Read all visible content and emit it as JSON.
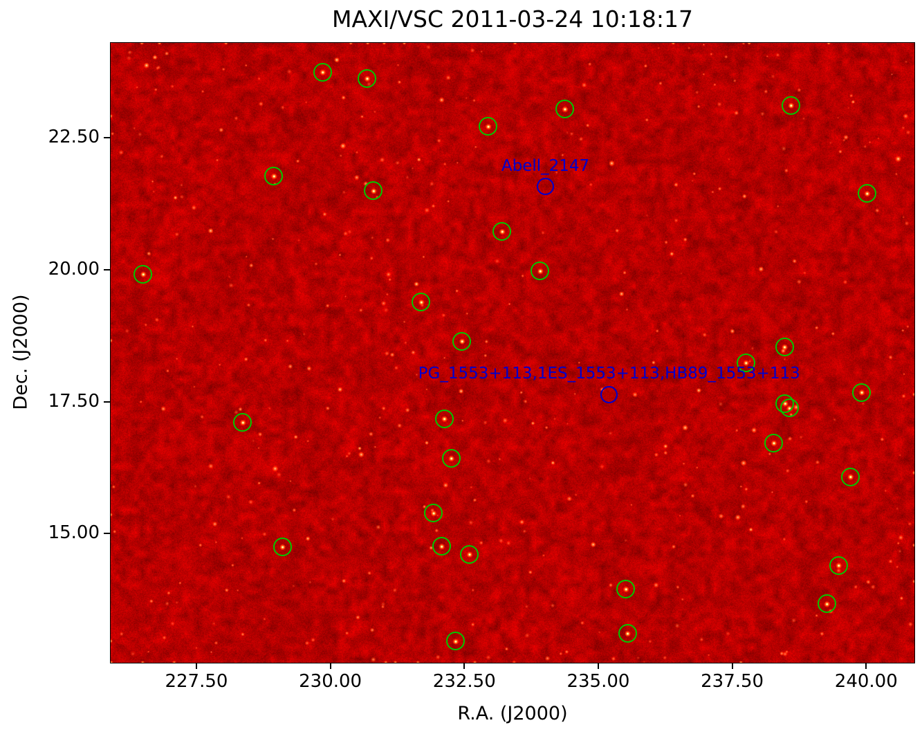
{
  "chart_data": {
    "type": "scatter",
    "title": "MAXI/VSC 2011-03-24 10:18:17",
    "xlabel": "R.A. (J2000)",
    "ylabel": "Dec. (J2000)",
    "xlim": [
      225.9,
      240.9
    ],
    "ylim": [
      12.55,
      24.3
    ],
    "x_ticks": [
      227.5,
      230.0,
      232.5,
      235.0,
      237.5,
      240.0
    ],
    "x_tick_labels": [
      "227.50",
      "230.00",
      "232.50",
      "235.00",
      "237.50",
      "240.00"
    ],
    "y_ticks": [
      22.5,
      20.0,
      17.5,
      15.0
    ],
    "y_tick_labels": [
      "22.50",
      "20.00",
      "17.50",
      "15.00"
    ],
    "background_description": "X-ray intensity sky map, hot colormap: mottled dark-red noise with bright white point sources",
    "colors": {
      "detected_source_circle": "#00c800",
      "catalog_source_circle": "#0000cd",
      "label_text": "#0000cd",
      "background_base": "#b20000"
    },
    "detected_sources": [
      {
        "ra": 229.86,
        "dec": 23.74
      },
      {
        "ra": 230.69,
        "dec": 23.62
      },
      {
        "ra": 234.38,
        "dec": 23.04
      },
      {
        "ra": 232.95,
        "dec": 22.71
      },
      {
        "ra": 238.6,
        "dec": 23.11
      },
      {
        "ra": 228.95,
        "dec": 21.77
      },
      {
        "ra": 230.81,
        "dec": 21.49
      },
      {
        "ra": 240.02,
        "dec": 21.44
      },
      {
        "ra": 233.21,
        "dec": 20.72
      },
      {
        "ra": 233.92,
        "dec": 19.97
      },
      {
        "ra": 226.51,
        "dec": 19.91
      },
      {
        "ra": 231.7,
        "dec": 19.38
      },
      {
        "ra": 232.46,
        "dec": 18.64
      },
      {
        "ra": 238.48,
        "dec": 18.53
      },
      {
        "ra": 237.76,
        "dec": 18.23
      },
      {
        "ra": 238.49,
        "dec": 17.46
      },
      {
        "ra": 238.57,
        "dec": 17.37
      },
      {
        "ra": 239.92,
        "dec": 17.67
      },
      {
        "ra": 228.37,
        "dec": 17.1
      },
      {
        "ra": 232.13,
        "dec": 17.17
      },
      {
        "ra": 238.28,
        "dec": 16.71
      },
      {
        "ra": 232.26,
        "dec": 16.42
      },
      {
        "ra": 239.71,
        "dec": 16.07
      },
      {
        "ra": 231.93,
        "dec": 15.38
      },
      {
        "ra": 232.08,
        "dec": 14.75
      },
      {
        "ra": 229.11,
        "dec": 14.74
      },
      {
        "ra": 232.6,
        "dec": 14.6
      },
      {
        "ra": 235.52,
        "dec": 13.94
      },
      {
        "ra": 239.49,
        "dec": 14.39
      },
      {
        "ra": 239.27,
        "dec": 13.66
      },
      {
        "ra": 235.55,
        "dec": 13.1
      },
      {
        "ra": 232.34,
        "dec": 12.95
      }
    ],
    "catalog_sources": [
      {
        "label": "Abell_2147",
        "ra": 234.02,
        "dec": 21.57
      },
      {
        "label": "PG_1553+113,1ES_1553+113,HB89_1553+113",
        "ra": 235.21,
        "dec": 17.63
      }
    ]
  }
}
